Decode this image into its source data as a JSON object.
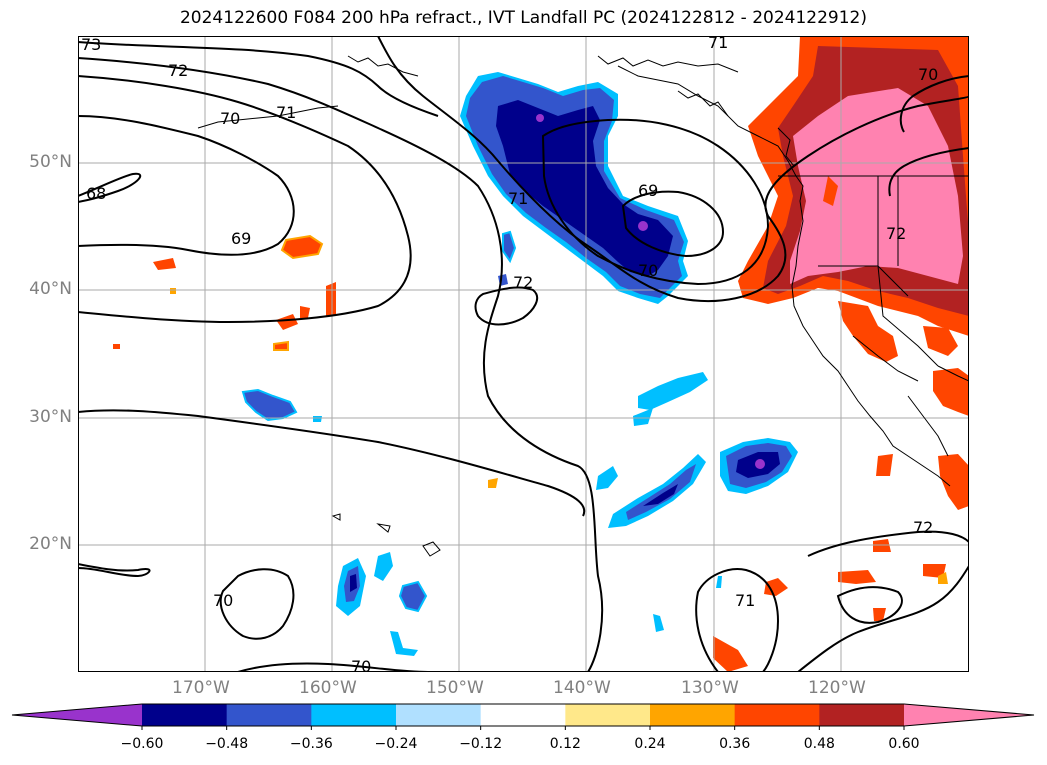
{
  "title": "2024122600 F084 200 hPa refract., IVT Landfall PC (2024122812 - 2024122912)",
  "map": {
    "lon_range": [
      180,
      110
    ],
    "lat_range": [
      10,
      60
    ],
    "grid": true,
    "lat_labels": [
      "50°N",
      "40°N",
      "30°N",
      "20°N"
    ],
    "lon_labels": [
      "170°W",
      "160°W",
      "150°W",
      "140°W",
      "130°W",
      "120°W"
    ],
    "contour_labels": [
      "73",
      "72",
      "70",
      "71",
      "68",
      "69",
      "71",
      "72",
      "69",
      "70",
      "71",
      "70",
      "72",
      "72",
      "70",
      "70",
      "71"
    ]
  },
  "colorbar": {
    "boundaries": [
      "-0.60",
      "-0.48",
      "-0.36",
      "-0.24",
      "-0.12",
      "0.12",
      "0.24",
      "0.36",
      "0.48",
      "0.60"
    ],
    "colors": [
      "#9933cc",
      "#00008b",
      "#3355cc",
      "#00bfff",
      "#b0e0ff",
      "#ffffff",
      "#ffe88a",
      "#ffa500",
      "#ff4500",
      "#b22222",
      "#ff82b0"
    ],
    "extend": "both"
  }
}
